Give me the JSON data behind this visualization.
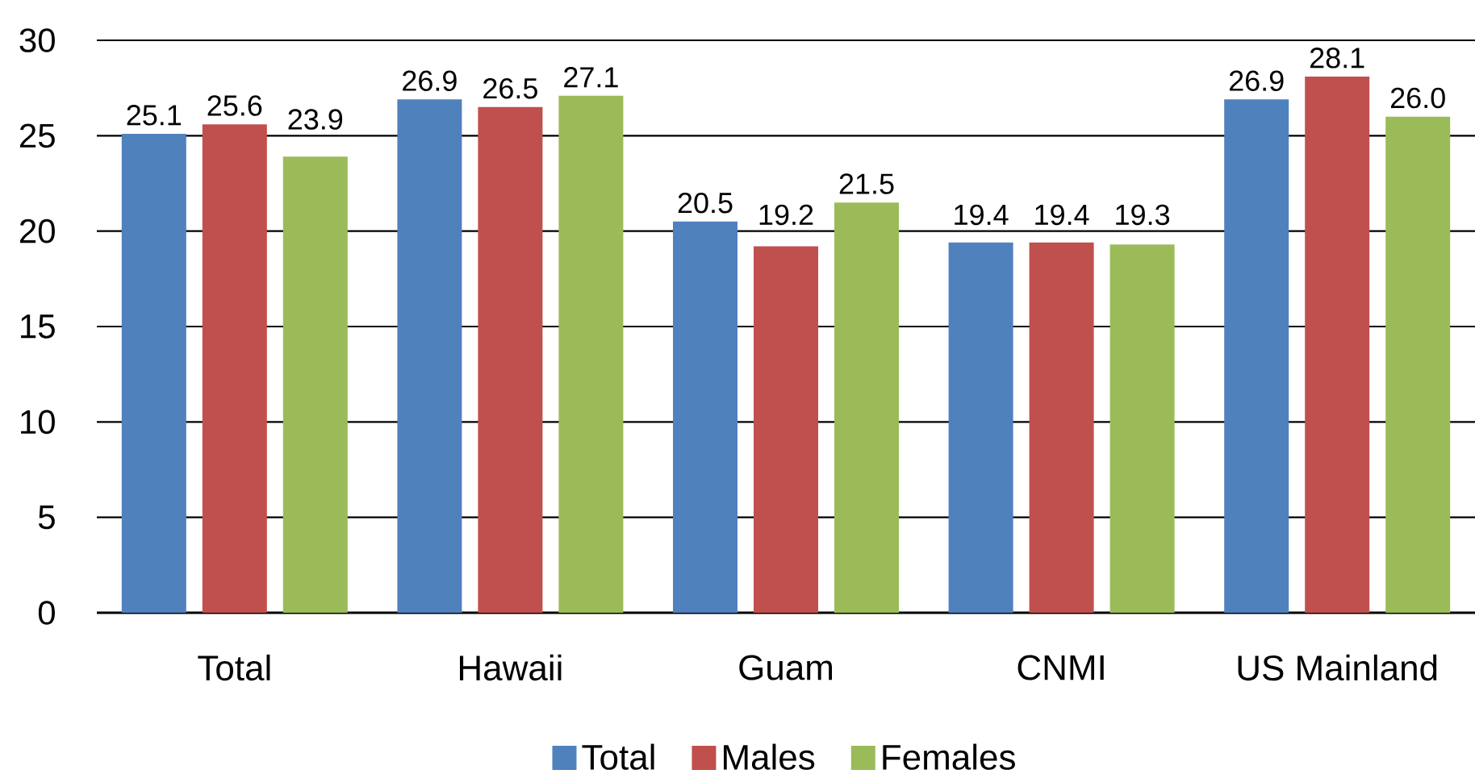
{
  "chart_data": {
    "type": "bar",
    "categories": [
      "Total",
      "Hawaii",
      "Guam",
      "CNMI",
      "US Mainland"
    ],
    "series": [
      {
        "name": "Total",
        "color": "#4f81bd",
        "values": [
          25.1,
          26.9,
          20.5,
          19.4,
          26.9
        ],
        "value_labels": [
          "25.1",
          "26.9",
          "20.5",
          "19.4",
          "26.9"
        ]
      },
      {
        "name": "Males",
        "color": "#c0504d",
        "values": [
          25.6,
          26.5,
          19.2,
          19.4,
          28.1
        ],
        "value_labels": [
          "25.6",
          "26.5",
          "19.2",
          "19.4",
          "28.1"
        ]
      },
      {
        "name": "Females",
        "color": "#9bbb59",
        "values": [
          23.9,
          27.1,
          21.5,
          19.3,
          26.0
        ],
        "value_labels": [
          "23.9",
          "27.1",
          "21.5",
          "19.3",
          "26.0"
        ]
      }
    ],
    "ylim": [
      0,
      30
    ],
    "yticks": [
      0,
      5,
      10,
      15,
      20,
      25,
      30
    ],
    "grid": "y",
    "legend": "bottom"
  }
}
